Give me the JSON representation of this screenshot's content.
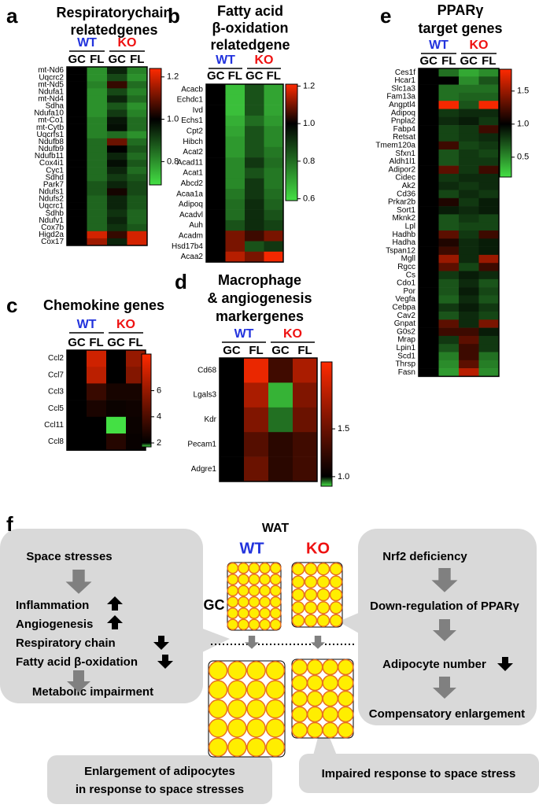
{
  "chart_data": [
    {
      "type": "heatmap",
      "panel": "a",
      "title": [
        "Respiratorychain",
        "relatedgenes"
      ],
      "groups": [
        {
          "name": "WT",
          "color": "#2233dd"
        },
        {
          "name": "KO",
          "color": "#ee1111"
        }
      ],
      "columns": [
        "GC",
        "FL",
        "GC",
        "FL"
      ],
      "rows": [
        "mt-Nd6",
        "Uqcrc2",
        "mt-Nd5",
        "Ndufa1",
        "mt-Nd4",
        "Sdha",
        "Ndufa10",
        "mt-Co1",
        "mt-Cytb",
        "Uqcrfs1",
        "Ndufb8",
        "Ndufb9",
        "Ndufb11",
        "Cox4i1",
        "Cyc1",
        "Sdhd",
        "Park7",
        "Ndufs1",
        "Ndufs2",
        "Uqcrc1",
        "Sdhb",
        "Ndufv1",
        "Cox7b",
        "Higd2a",
        "Cox17"
      ],
      "values": [
        [
          1,
          0.8,
          0.95,
          0.82
        ],
        [
          1,
          0.8,
          0.9,
          0.8
        ],
        [
          1,
          0.82,
          1.05,
          0.85
        ],
        [
          1,
          0.8,
          0.9,
          0.82
        ],
        [
          1,
          0.8,
          0.95,
          0.85
        ],
        [
          1,
          0.8,
          0.88,
          0.8
        ],
        [
          1,
          0.8,
          0.92,
          0.82
        ],
        [
          1,
          0.82,
          0.97,
          0.85
        ],
        [
          1,
          0.82,
          0.98,
          0.85
        ],
        [
          1,
          0.82,
          0.85,
          0.8
        ],
        [
          1,
          0.85,
          1.1,
          0.85
        ],
        [
          1,
          0.85,
          1,
          0.88
        ],
        [
          1,
          0.85,
          0.95,
          0.85
        ],
        [
          1,
          0.85,
          0.98,
          0.88
        ],
        [
          1,
          0.85,
          0.95,
          0.85
        ],
        [
          1,
          0.85,
          0.92,
          0.88
        ],
        [
          1,
          0.88,
          0.95,
          0.9
        ],
        [
          1,
          0.88,
          1.02,
          0.9
        ],
        [
          1,
          0.86,
          0.95,
          0.88
        ],
        [
          1,
          0.86,
          0.95,
          0.88
        ],
        [
          1,
          0.86,
          0.93,
          0.86
        ],
        [
          1,
          0.86,
          0.95,
          0.86
        ],
        [
          1,
          0.86,
          0.93,
          0.88
        ],
        [
          1,
          1.2,
          1.05,
          1.2
        ],
        [
          1,
          1.15,
          0.95,
          1.2
        ]
      ],
      "clim": [
        0.69,
        1.24
      ],
      "cmid": 1,
      "colormap": [
        "#44e044",
        "#000000",
        "#ff2a00"
      ],
      "cticks": [
        0.8,
        {
          "value": 1,
          "label": "1.0"
        },
        1.2
      ]
    },
    {
      "type": "heatmap",
      "panel": "b",
      "title": [
        "Fatty acid",
        "β-oxidation",
        "relatedgene"
      ],
      "groups": [
        {
          "name": "WT",
          "color": "#2233dd"
        },
        {
          "name": "KO",
          "color": "#ee1111"
        }
      ],
      "columns": [
        "GC",
        "FL",
        "GC",
        "FL"
      ],
      "rows": [
        "Acacb",
        "Echdc1",
        "Ivd",
        "Echs1",
        "Cpt2",
        "Hibch",
        "Acat2",
        "Acad11",
        "Acat1",
        "Abcd2",
        "Acaa1a",
        "Adipoq",
        "Acadvl",
        "Auh",
        "Acadm",
        "Hsd17b4",
        "Acaa2"
      ],
      "values": [
        [
          1,
          0.65,
          0.85,
          0.7
        ],
        [
          1,
          0.65,
          0.85,
          0.7
        ],
        [
          1,
          0.65,
          0.85,
          0.7
        ],
        [
          1,
          0.68,
          0.8,
          0.72
        ],
        [
          1,
          0.7,
          0.85,
          0.75
        ],
        [
          1,
          0.72,
          0.85,
          0.75
        ],
        [
          1,
          0.72,
          0.85,
          0.78
        ],
        [
          1,
          0.75,
          0.9,
          0.8
        ],
        [
          1,
          0.75,
          0.85,
          0.78
        ],
        [
          1,
          0.75,
          0.9,
          0.78
        ],
        [
          1,
          0.78,
          0.9,
          0.8
        ],
        [
          1,
          0.8,
          0.92,
          0.82
        ],
        [
          1,
          0.8,
          0.92,
          0.85
        ],
        [
          1,
          0.85,
          0.92,
          0.88
        ],
        [
          1,
          1.1,
          1.05,
          1.1
        ],
        [
          1,
          1.1,
          0.85,
          0.9
        ],
        [
          1,
          1.15,
          1.1,
          1.2
        ]
      ],
      "clim": [
        0.59,
        1.21
      ],
      "cmid": 1,
      "colormap": [
        "#44e044",
        "#000000",
        "#ff2a00"
      ],
      "cticks": [
        0.6,
        0.8,
        {
          "value": 1,
          "label": "1.0"
        },
        1.2
      ]
    },
    {
      "type": "heatmap",
      "panel": "c",
      "title": [
        "Chemokine genes"
      ],
      "groups": [
        {
          "name": "WT",
          "color": "#2233dd"
        },
        {
          "name": "KO",
          "color": "#ee1111"
        }
      ],
      "columns": [
        "GC",
        "FL",
        "GC",
        "FL"
      ],
      "rows": [
        "Ccl2",
        "Ccl7",
        "Ccl3",
        "Ccl5",
        "Ccl11",
        "Ccl8"
      ],
      "values": [
        [
          2,
          7.5,
          2,
          6
        ],
        [
          2,
          7,
          2,
          5.5
        ],
        [
          2,
          3.5,
          2.6,
          2.6
        ],
        [
          2,
          2.7,
          2.3,
          2.4
        ],
        [
          2,
          2,
          1.7,
          2.3
        ],
        [
          2,
          2,
          3,
          2.2
        ]
      ],
      "clim": [
        1.7,
        8.8
      ],
      "cmid": 2,
      "colormap": [
        "#44e044",
        "#000000",
        "#ff2a00"
      ],
      "cticks": [
        2,
        4,
        6
      ]
    },
    {
      "type": "heatmap",
      "panel": "d",
      "title": [
        "Macrophage",
        "& angiogenesis",
        "markergenes"
      ],
      "groups": [
        {
          "name": "WT",
          "color": "#2233dd"
        },
        {
          "name": "KO",
          "color": "#ee1111"
        }
      ],
      "columns": [
        "GC",
        "FL",
        "GC",
        "FL"
      ],
      "rows": [
        "Cd68",
        "Lgals3",
        "Kdr",
        "Pecam1",
        "Adgre1"
      ],
      "values": [
        [
          1,
          2.1,
          1.3,
          1.8
        ],
        [
          1,
          1.8,
          0.92,
          1.6
        ],
        [
          1,
          1.6,
          0.95,
          1.5
        ],
        [
          1,
          1.4,
          1.2,
          1.3
        ],
        [
          1,
          1.5,
          1.2,
          1.3
        ]
      ],
      "clim": [
        0.9,
        2.2
      ],
      "cmid": 1,
      "colormap": [
        "#44e044",
        "#000000",
        "#ff2a00"
      ],
      "cticks": [
        {
          "value": 1,
          "label": "1.0"
        },
        1.5
      ]
    },
    {
      "type": "heatmap",
      "panel": "e",
      "title": [
        "PPARγ",
        "target genes"
      ],
      "groups": [
        {
          "name": "WT",
          "color": "#2233dd"
        },
        {
          "name": "KO",
          "color": "#ee1111"
        }
      ],
      "columns": [
        "GC",
        "FL",
        "GC",
        "FL"
      ],
      "rows": [
        "Ces1f",
        "Hcar1",
        "Slc1a3",
        "Fam13a",
        "Angptl4",
        "Adipoq",
        "Pnpla2",
        "Fabp4",
        "Retsat",
        "Tmem120a",
        "Sfxn1",
        "Aldh1l1",
        "Adipor2",
        "Cidec",
        "Ak2",
        "Cd36",
        "Prkar2b",
        "Sort1",
        "Mknk2",
        "Lpl",
        "Hadhb",
        "Hadha",
        "Tspan12",
        "Mgll",
        "Rgcc",
        "Cs",
        "Cdo1",
        "Por",
        "Vegfa",
        "Cebpa",
        "Cav2",
        "Gnpat",
        "G0s2",
        "Mrap",
        "Lpin1",
        "Scd1",
        "Thrsp",
        "Fasn"
      ],
      "values": [
        [
          1,
          0.6,
          0.4,
          0.5
        ],
        [
          1,
          1,
          0.5,
          0.7
        ],
        [
          1,
          0.6,
          0.6,
          0.6
        ],
        [
          1,
          0.6,
          0.65,
          0.65
        ],
        [
          1,
          1.8,
          0.7,
          1.8
        ],
        [
          1,
          0.8,
          0.85,
          0.85
        ],
        [
          1,
          0.85,
          0.9,
          0.8
        ],
        [
          1,
          0.75,
          0.8,
          1.2
        ],
        [
          1,
          0.75,
          0.8,
          0.85
        ],
        [
          1,
          1.2,
          0.75,
          0.8
        ],
        [
          1,
          0.7,
          0.8,
          0.75
        ],
        [
          1,
          0.7,
          0.8,
          0.8
        ],
        [
          1,
          1.3,
          0.8,
          1.2
        ],
        [
          1,
          0.8,
          0.85,
          0.85
        ],
        [
          1,
          0.85,
          0.8,
          0.85
        ],
        [
          1,
          0.75,
          0.85,
          0.8
        ],
        [
          1,
          1.1,
          0.8,
          0.9
        ],
        [
          1,
          0.9,
          0.85,
          0.9
        ],
        [
          1,
          0.7,
          0.8,
          0.75
        ],
        [
          1,
          0.7,
          0.75,
          0.75
        ],
        [
          1,
          1.3,
          0.8,
          1.2
        ],
        [
          1,
          1.1,
          0.85,
          0.9
        ],
        [
          1,
          1.2,
          0.85,
          0.9
        ],
        [
          1,
          1.5,
          0.85,
          1.5
        ],
        [
          1,
          1.3,
          0.75,
          1.2
        ],
        [
          1,
          0.8,
          0.9,
          0.85
        ],
        [
          1,
          0.7,
          0.85,
          0.7
        ],
        [
          1,
          0.7,
          0.9,
          0.75
        ],
        [
          1,
          0.65,
          0.85,
          0.7
        ],
        [
          1,
          0.8,
          0.9,
          0.8
        ],
        [
          1,
          0.7,
          0.85,
          0.75
        ],
        [
          1,
          1.3,
          0.85,
          1.4
        ],
        [
          1,
          1.2,
          1.2,
          0.9
        ],
        [
          1,
          0.8,
          1.3,
          0.8
        ],
        [
          1,
          0.7,
          1.2,
          0.8
        ],
        [
          1,
          0.55,
          1.2,
          0.6
        ],
        [
          1,
          0.5,
          1.3,
          0.55
        ],
        [
          1,
          0.45,
          1.6,
          0.5
        ]
      ],
      "clim": [
        0.2,
        1.83
      ],
      "cmid": 1,
      "colormap": [
        "#44e044",
        "#000000",
        "#ff2a00"
      ],
      "cticks": [
        0.5,
        {
          "value": 1,
          "label": "1.0"
        },
        1.5
      ]
    }
  ],
  "diagram": {
    "panel": "f",
    "title": "WAT",
    "groups": [
      {
        "name": "WT",
        "color": "#2233dd"
      },
      {
        "name": "KO",
        "color": "#ee1111"
      }
    ],
    "conditions": [
      "GC",
      "FL"
    ],
    "left_box": [
      "Space stresses",
      "Inflammation",
      "Angiogenesis",
      "Respiratory chain",
      "Fatty acid β-oxidation",
      "Metabolic impairment"
    ],
    "right_box": [
      "Nrf2 deficiency",
      "Down-regulation of PPARγ",
      "Adipocyte number",
      "Compensatory enlargement"
    ],
    "left_callout": [
      "Enlargement of adipocytes",
      "in response to space stresses"
    ],
    "right_callout": "Impaired response to space stress"
  }
}
